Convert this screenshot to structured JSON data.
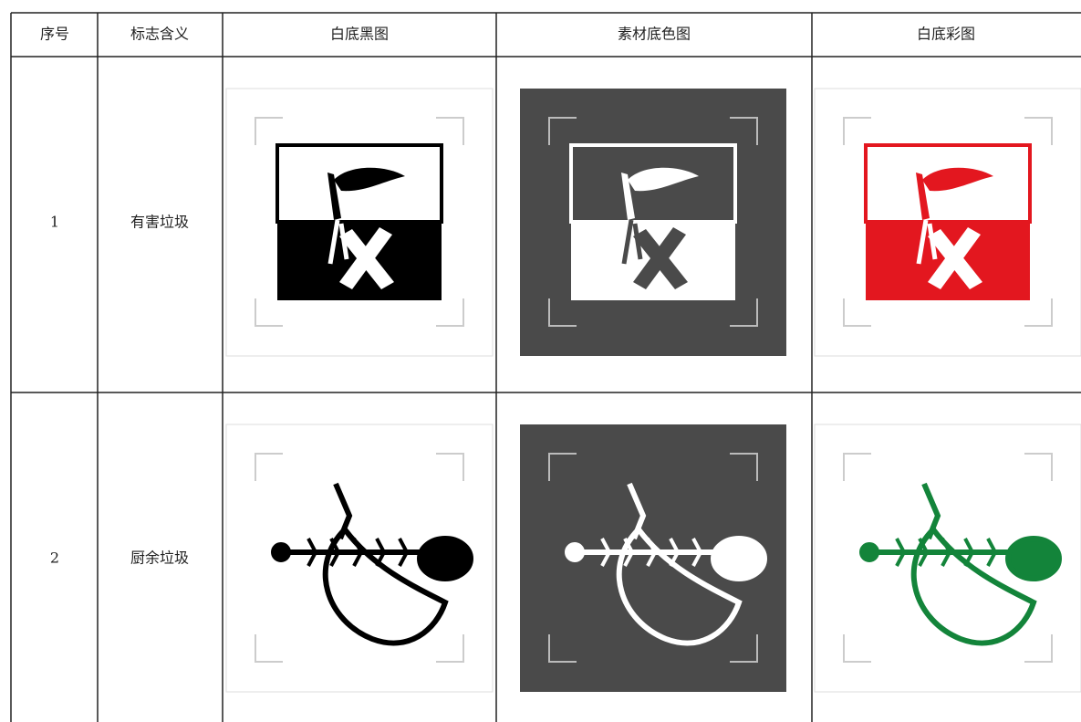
{
  "table": {
    "header": [
      "序号",
      "标志含义",
      "白底黑图",
      "素材底色图",
      "白底彩图"
    ],
    "rows": [
      [
        "1",
        "有害垃圾"
      ],
      [
        "2",
        "厨余垃圾"
      ]
    ]
  }
}
